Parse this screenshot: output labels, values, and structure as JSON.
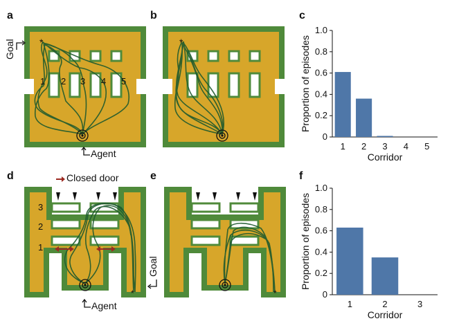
{
  "panels": {
    "a": {
      "label": "a",
      "goal_label": "Goal",
      "agent_label": "Agent",
      "corridor_numbers": [
        "1",
        "2",
        "3",
        "4",
        "5"
      ]
    },
    "b": {
      "label": "b"
    },
    "c": {
      "label": "c"
    },
    "d": {
      "label": "d",
      "closed_door_label": "Closed door",
      "agent_label": "Agent",
      "corridor_numbers": [
        "1",
        "2",
        "3"
      ]
    },
    "e": {
      "label": "e",
      "goal_label": "Goal"
    },
    "f": {
      "label": "f"
    }
  },
  "colors": {
    "bar": "#4f77a8",
    "maze_floor": "#d7a62a",
    "maze_wall": "#4f8a3a",
    "trajectory": "#1e5a2e",
    "door_arrow": "#9c2a21"
  },
  "chart_data": [
    {
      "type": "bar",
      "panel": "c",
      "categories": [
        "1",
        "2",
        "3",
        "4",
        "5"
      ],
      "values": [
        0.61,
        0.36,
        0.01,
        0.0,
        0.0
      ],
      "xlabel": "Corridor",
      "ylabel": "Proportion of episodes",
      "ylim": [
        0,
        1.0
      ],
      "yticks": [
        "0",
        "0.2",
        "0.4",
        "0.6",
        "0.8",
        "1.0"
      ],
      "grid": false
    },
    {
      "type": "bar",
      "panel": "f",
      "categories": [
        "1",
        "2",
        "3"
      ],
      "values": [
        0.63,
        0.35,
        0.0
      ],
      "xlabel": "Corridor",
      "ylabel": "Proportion of episodes",
      "ylim": [
        0,
        1.0
      ],
      "yticks": [
        "0",
        "0.2",
        "0.4",
        "0.6",
        "0.8",
        "1.0"
      ],
      "grid": false
    }
  ]
}
